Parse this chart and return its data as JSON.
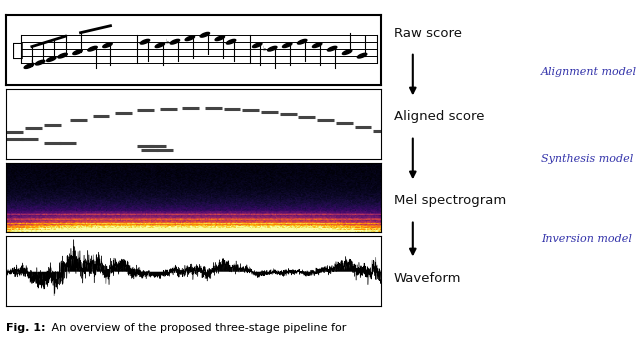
{
  "right_labels": [
    "Raw score",
    "Aligned score",
    "Mel spectrogram",
    "Waveform"
  ],
  "right_italic_labels": [
    "Alignment model",
    "Synthesis model",
    "Inversion model"
  ],
  "arrow_color": "#222222",
  "italic_label_color": "#3333aa",
  "label_color": "#111111",
  "dash_color": "#444444",
  "figsize": [
    6.4,
    3.4
  ],
  "dpi": 100,
  "caption_bold": "Fig. 1:",
  "caption_rest": " An overview of the proposed three-stage pipeline for"
}
